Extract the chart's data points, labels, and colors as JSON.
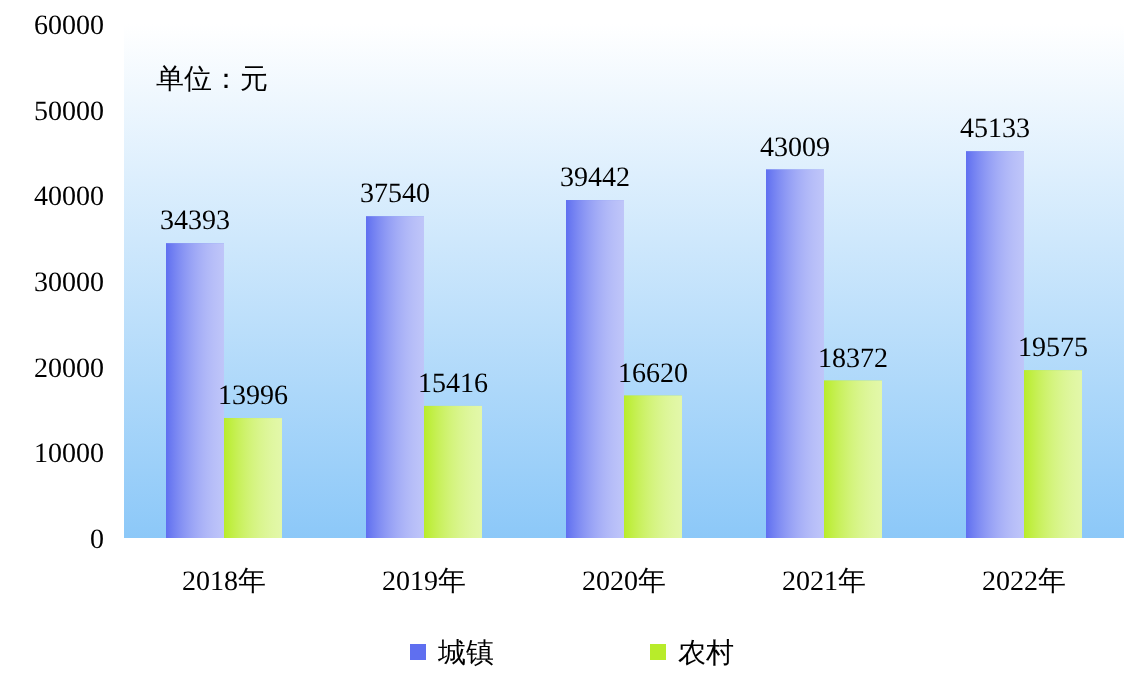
{
  "chart_data": {
    "type": "bar",
    "categories": [
      "2018年",
      "2019年",
      "2020年",
      "2021年",
      "2022年"
    ],
    "series": [
      {
        "name": "城镇",
        "color": "#5f6ff0",
        "values": [
          34393,
          37540,
          39442,
          43009,
          45133
        ]
      },
      {
        "name": "农村",
        "color": "#b8ec2a",
        "values": [
          13996,
          15416,
          16620,
          18372,
          19575
        ]
      }
    ],
    "ylim": [
      0,
      60000
    ],
    "yticks": [
      0,
      10000,
      20000,
      30000,
      40000,
      50000,
      60000
    ],
    "data_labels": true,
    "legend": "bottom",
    "grid": false,
    "annotations": [
      "单位：元"
    ]
  }
}
